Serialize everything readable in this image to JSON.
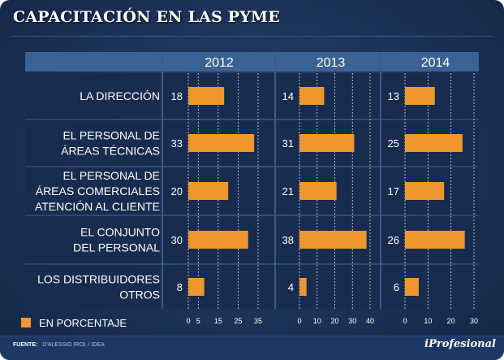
{
  "title": "CAPACITACIÓN EN LAS PYME",
  "legend": {
    "label": "EN PORCENTAJE"
  },
  "footer": {
    "source_label": "FUENTE:",
    "source_value": "D'ALESSIO IROL / IDEA",
    "brand": "iProfesional"
  },
  "colors": {
    "bar": "#f0962f",
    "header_band": "#3b6294",
    "row_bg": "#172c4f",
    "grid": "#ffffff"
  },
  "chart_data": {
    "type": "bar",
    "orientation": "horizontal",
    "title": "CAPACITACIÓN EN LAS PYME",
    "unit": "EN PORCENTAJE",
    "categories": [
      [
        "LA DIRECCIÓN"
      ],
      [
        "EL PERSONAL DE",
        "ÁREAS TÉCNICAS"
      ],
      [
        "EL PERSONAL DE",
        "ÁREAS COMERCIALES",
        "ATENCIÓN AL CLIENTE"
      ],
      [
        "EL CONJUNTO",
        "DEL PERSONAL"
      ],
      [
        "LOS DISTRIBUIDORES",
        "OTROS"
      ]
    ],
    "series": [
      {
        "name": "2012",
        "values": [
          18,
          33,
          20,
          30,
          8
        ],
        "xlim": [
          0,
          35
        ],
        "ticks": [
          0,
          5,
          15,
          25,
          35
        ]
      },
      {
        "name": "2013",
        "values": [
          14,
          31,
          21,
          38,
          4
        ],
        "xlim": [
          0,
          40
        ],
        "ticks": [
          0,
          10,
          20,
          30,
          40
        ]
      },
      {
        "name": "2014",
        "values": [
          13,
          25,
          17,
          26,
          6
        ],
        "xlim": [
          0,
          30
        ],
        "ticks": [
          0,
          10,
          20,
          30
        ]
      }
    ]
  }
}
